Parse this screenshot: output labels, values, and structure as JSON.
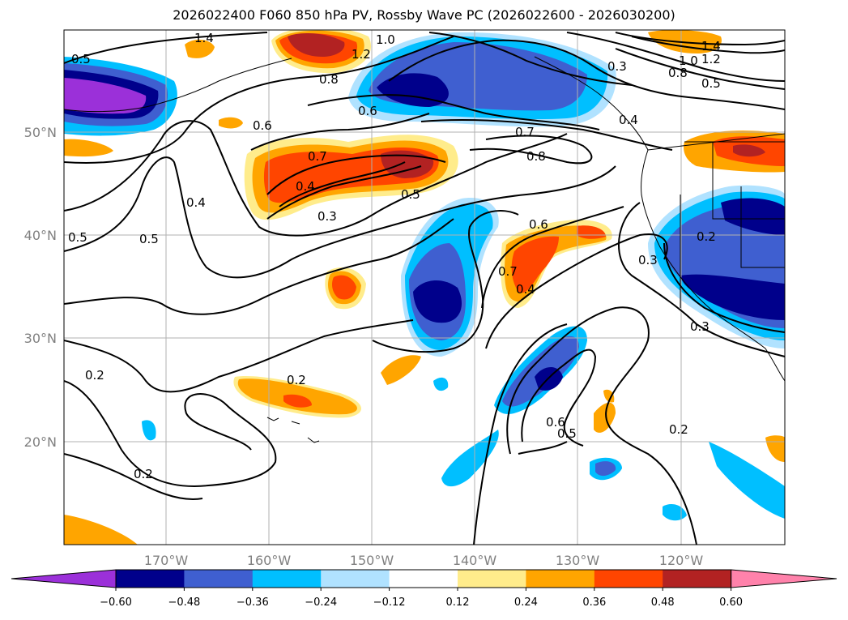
{
  "title": "2026022400 F060 850 hPa PV, Rossby Wave PC (2026022600 - 2026030200)",
  "lat_labels": [
    "50°N",
    "40°N",
    "30°N",
    "20°N"
  ],
  "lon_labels": [
    "170°W",
    "160°W",
    "150°W",
    "140°W",
    "130°W",
    "120°W"
  ],
  "colorbar": {
    "ticks": [
      "−0.60",
      "−0.48",
      "−0.36",
      "−0.24",
      "−0.12",
      "0.12",
      "0.24",
      "0.36",
      "0.48",
      "0.60"
    ],
    "colors": [
      "#9b30d9",
      "#00008b",
      "#3f5fd0",
      "#00bfff",
      "#b0e2ff",
      "#ffffff",
      "#ffec8b",
      "#ffa500",
      "#ff4500",
      "#b22222",
      "#ff82ab"
    ]
  },
  "contour_labels": [
    "1.4",
    "0.8",
    "1.0",
    "1.2",
    "0.5",
    "0.6",
    "0.7",
    "0.4",
    "0.3",
    "0.2",
    "1.4",
    "1.2",
    "1.0",
    "0.8",
    "0.5",
    "0.3",
    "0.4",
    "0.8",
    "0.7",
    "0.6",
    "0.6",
    "0.7",
    "0.4",
    "0.5",
    "0.3",
    "0.4",
    "0.5",
    "0.2",
    "0.2",
    "0.2",
    "0.2",
    "0.3",
    "0.5",
    "0.6",
    "0.5"
  ]
}
